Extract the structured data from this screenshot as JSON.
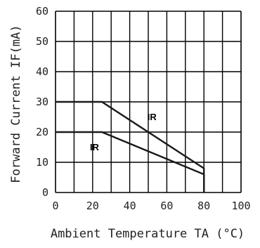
{
  "chart_data": {
    "type": "line",
    "xlabel": "Ambient Temperature TA (°C)",
    "ylabel": "Forward Current IF(mA)",
    "xlim": [
      0,
      100
    ],
    "ylim": [
      0,
      60
    ],
    "x_ticks": [
      "0",
      "20",
      "40",
      "60",
      "80",
      "100"
    ],
    "y_ticks": [
      "0",
      "10",
      "20",
      "30",
      "40",
      "50",
      "60"
    ],
    "grid": true,
    "series": [
      {
        "points": [
          [
            0,
            30
          ],
          [
            25,
            30
          ],
          [
            80,
            8
          ],
          [
            80,
            0
          ]
        ]
      },
      {
        "points": [
          [
            0,
            20
          ],
          [
            25,
            20
          ],
          [
            80,
            6
          ],
          [
            80,
            0
          ]
        ]
      }
    ],
    "annotations": [
      {
        "text": "IR",
        "x": 52,
        "y": 24
      },
      {
        "text": "IR",
        "x": 21,
        "y": 14
      }
    ]
  }
}
